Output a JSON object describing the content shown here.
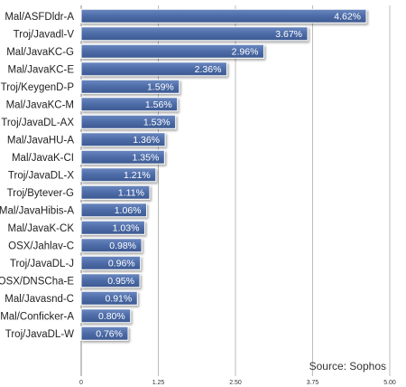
{
  "chart_data": {
    "type": "bar",
    "orientation": "horizontal",
    "categories": [
      "Mal/ASFDldr-A",
      "Troj/Javadl-V",
      "Mal/JavaKC-G",
      "Mal/JavaKC-E",
      "Troj/KeygenD-P",
      "Mal/JavaKC-M",
      "Troj/JavaDL-AX",
      "Mal/JavaHU-A",
      "Mal/JavaK-CI",
      "Troj/JavaDL-X",
      "Troj/Bytever-G",
      "Mal/JavaHibis-A",
      "Mal/JavaK-CK",
      "OSX/Jahlav-C",
      "Troj/JavaDL-J",
      "OSX/DNSCha-E",
      "Mal/Javasnd-C",
      "Mal/Conficker-A",
      "Troj/JavaDL-W"
    ],
    "values": [
      4.62,
      3.67,
      2.96,
      2.36,
      1.59,
      1.56,
      1.53,
      1.36,
      1.35,
      1.21,
      1.11,
      1.06,
      1.03,
      0.98,
      0.96,
      0.95,
      0.91,
      0.8,
      0.76
    ],
    "value_labels": [
      "4.62%",
      "3.67%",
      "2.96%",
      "2.36%",
      "1.59%",
      "1.56%",
      "1.53%",
      "1.36%",
      "1.35%",
      "1.21%",
      "1.11%",
      "1.06%",
      "1.03%",
      "0.98%",
      "0.96%",
      "0.95%",
      "0.91%",
      "0.80%",
      "0.76%"
    ],
    "x_ticks": [
      "0",
      "1.25",
      "2.50",
      "3.75",
      "5.00"
    ],
    "xlim": [
      0,
      5
    ],
    "grid": true,
    "bar_color": "#4a6aa6",
    "annotation": "Source: Sophos"
  }
}
